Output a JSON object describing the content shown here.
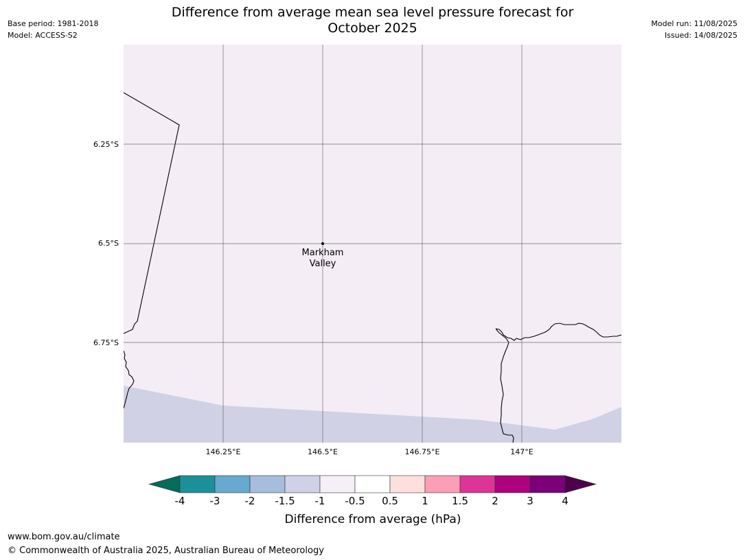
{
  "header": {
    "title_line1": "Difference from average mean sea level pressure forecast for",
    "title_line2": "October 2025",
    "base_period": "Base period: 1981-2018",
    "model": "Model: ACCESS-S2",
    "model_run": "Model run: 11/08/2025",
    "issued": "Issued: 14/08/2025"
  },
  "map": {
    "longitude_ticks": [
      "146.25°E",
      "146.5°E",
      "146.75°E",
      "147°E"
    ],
    "latitude_ticks": [
      "6.25°S",
      "6.5°S",
      "6.75°S"
    ],
    "place": {
      "name_line1": "Markham",
      "name_line2": "Valley"
    },
    "regions": [
      {
        "category": "-1 to -0.5",
        "color": "#f4edf5"
      },
      {
        "category": "-1.5 to -1",
        "color": "#d0d1e5"
      }
    ],
    "colors": {
      "coastline": "#000000",
      "gridline": "#555555"
    }
  },
  "colorbar": {
    "title": "Difference from average (hPa)",
    "tick_labels": [
      "-4",
      "-3",
      "-2",
      "-1.5",
      "-1",
      "-0.5",
      "0.5",
      "1",
      "1.5",
      "2",
      "3",
      "4"
    ],
    "under_color": "#016c59",
    "over_color": "#4d004b",
    "colors": [
      "#1c9099",
      "#67a9cf",
      "#a6bddb",
      "#d0d1e6",
      "#f6eff7",
      "#ffffff",
      "#fde0dd",
      "#fa9fb5",
      "#dd3497",
      "#ae017e",
      "#7a0177"
    ]
  },
  "footer": {
    "url": "www.bom.gov.au/climate",
    "copyright": "© Commonwealth of Australia 2025, Australian Bureau of Meteorology"
  }
}
